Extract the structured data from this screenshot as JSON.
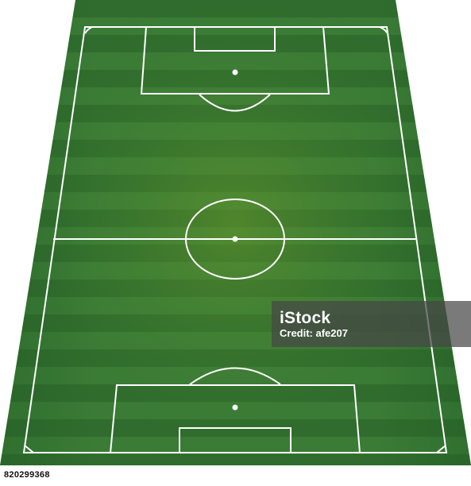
{
  "image": {
    "subject": "soccer-field-top-view",
    "colors": {
      "grass_dark": "#2d6a2c",
      "grass_light": "#3a7a36",
      "grass_center": "#4d8a2a",
      "lines": "#ffffff",
      "watermark_bg": "#464646"
    }
  },
  "watermark": {
    "brand": "iStock",
    "credit": "Credit: afe207"
  },
  "stock_id": "820299368"
}
